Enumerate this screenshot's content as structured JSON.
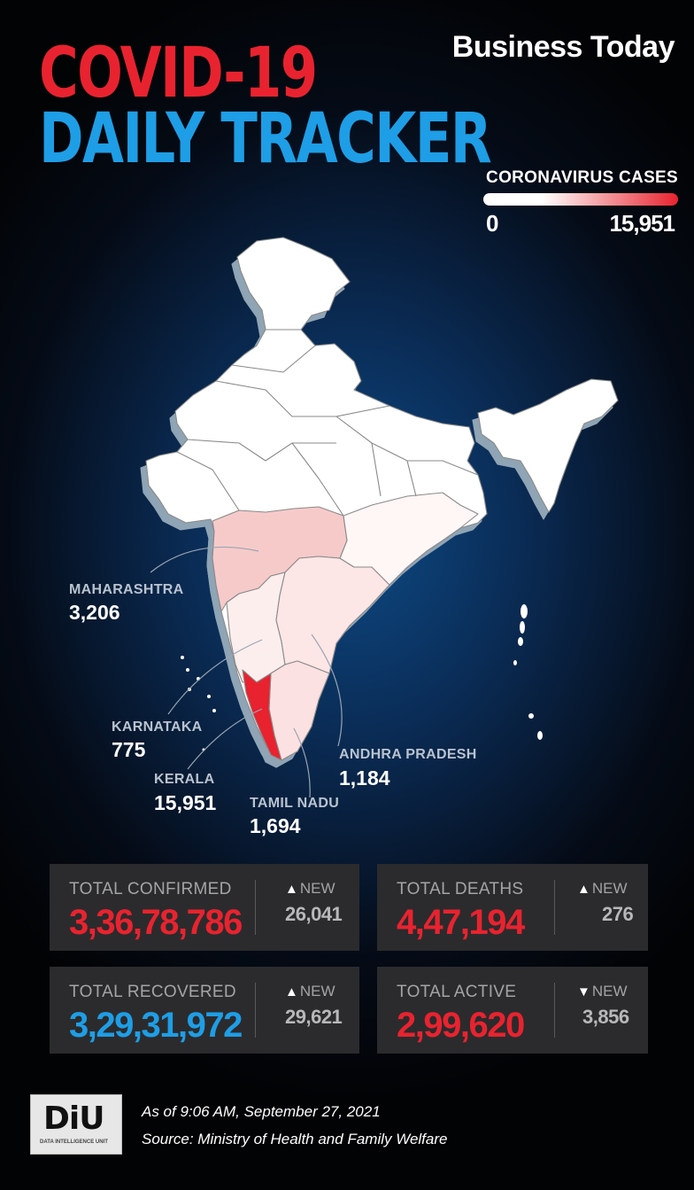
{
  "header": {
    "title_line1": "COVID-19",
    "title_line2": "DAILY TRACKER",
    "brand": "Business Today"
  },
  "legend": {
    "title": "CORONAVIRUS CASES",
    "min": "0",
    "max": "15,951",
    "color_low": "#ffffff",
    "color_high": "#e8232f"
  },
  "map": {
    "region": "India",
    "state_callouts": [
      {
        "name": "MAHARASHTRA",
        "value": "3,206"
      },
      {
        "name": "KARNATAKA",
        "value": "775"
      },
      {
        "name": "KERALA",
        "value": "15,951"
      },
      {
        "name": "TAMIL NADU",
        "value": "1,694"
      },
      {
        "name": "ANDHRA PRADESH",
        "value": "1,184"
      }
    ]
  },
  "stats": {
    "total_confirmed": {
      "label": "TOTAL CONFIRMED",
      "value": "3,36,78,786",
      "new_label": "NEW",
      "new_value": "26,041",
      "trend": "up"
    },
    "total_deaths": {
      "label": "TOTAL DEATHS",
      "value": "4,47,194",
      "new_label": "NEW",
      "new_value": "276",
      "trend": "up"
    },
    "total_recovered": {
      "label": "TOTAL RECOVERED",
      "value": "3,29,31,972",
      "new_label": "NEW",
      "new_value": "29,621",
      "trend": "up"
    },
    "total_active": {
      "label": "TOTAL ACTIVE",
      "value": "2,99,620",
      "new_label": "NEW",
      "new_value": "3,856",
      "trend": "down"
    }
  },
  "footer": {
    "logo_text": "DiU",
    "logo_subtitle": "DATA INTELLIGENCE UNIT",
    "as_of": "As of 9:06 AM, September 27, 2021",
    "source": "Source: Ministry of Health and Family Welfare"
  }
}
